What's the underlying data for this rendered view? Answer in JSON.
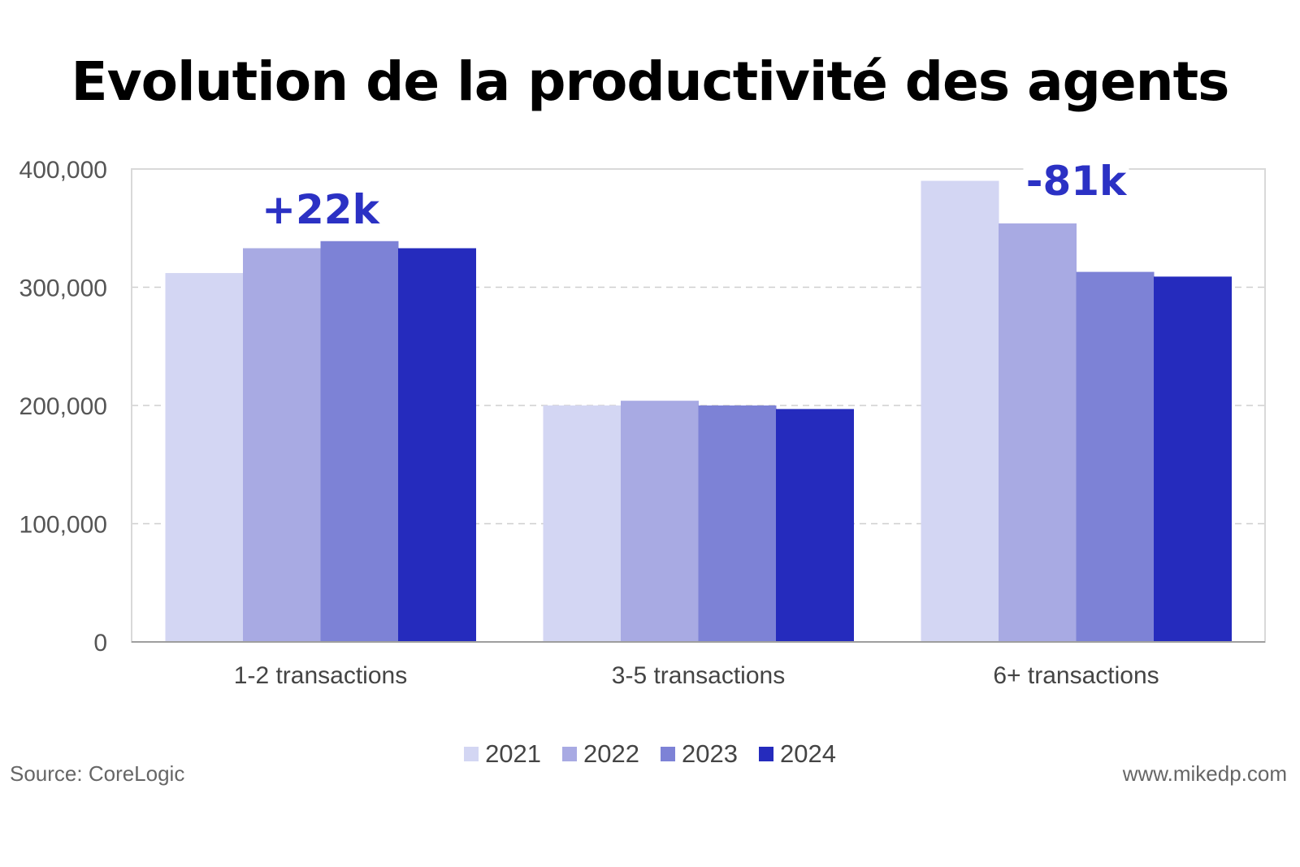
{
  "chart_data": {
    "type": "bar",
    "title": "Evolution de la productivité des agents",
    "categories": [
      "1-2 transactions",
      "3-5 transactions",
      "6+ transactions"
    ],
    "series": [
      {
        "name": "2021",
        "color": "#d3d6f3",
        "values": [
          312000,
          200000,
          390000
        ]
      },
      {
        "name": "2022",
        "color": "#a8aae3",
        "values": [
          333000,
          204000,
          354000
        ]
      },
      {
        "name": "2023",
        "color": "#7d82d6",
        "values": [
          339000,
          200000,
          313000
        ]
      },
      {
        "name": "2024",
        "color": "#252bbd",
        "values": [
          333000,
          197000,
          309000
        ]
      }
    ],
    "ylim": [
      0,
      400000
    ],
    "yticks": [
      {
        "value": 0,
        "label": "0"
      },
      {
        "value": 100000,
        "label": "100,000"
      },
      {
        "value": 200000,
        "label": "200,000"
      },
      {
        "value": 300000,
        "label": "300,000"
      },
      {
        "value": 400000,
        "label": "400,000"
      }
    ],
    "xlabel": "",
    "ylabel": "",
    "grid": true,
    "legend_position": "bottom",
    "annotations": [
      {
        "text": "+22k",
        "category": "1-2 transactions",
        "color": "#2b31c4"
      },
      {
        "text": "-81k",
        "category": "6+ transactions",
        "color": "#2b31c4"
      }
    ]
  },
  "footer": {
    "source": "Source: CoreLogic",
    "website": "www.mikedp.com"
  }
}
